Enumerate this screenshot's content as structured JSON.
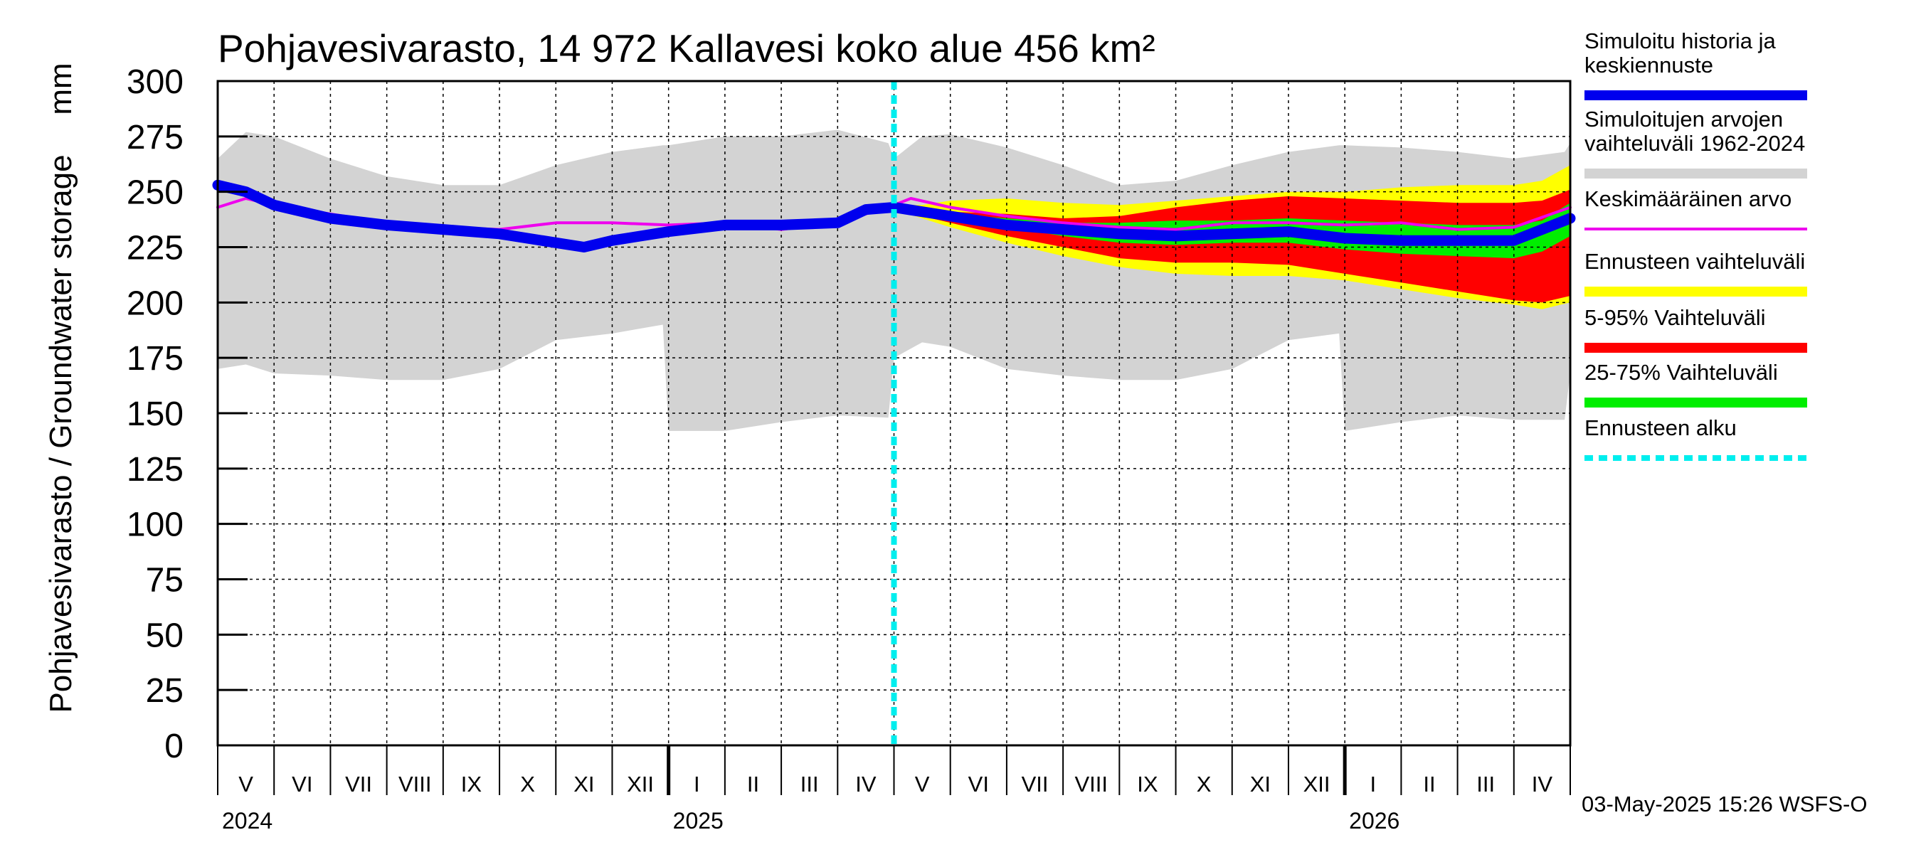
{
  "title": "Pohjavesivarasto, 14 972 Kallavesi koko alue 456 km²",
  "unit": "mm",
  "y_axis_label": "Pohjavesivarasto / Groundwater storage",
  "timestamp": "03-May-2025 15:26 WSFS-O",
  "legend": [
    {
      "label_lines": [
        "Simuloitu historia ja",
        "keskiennuste"
      ],
      "color": "#0000ee",
      "style": "thick"
    },
    {
      "label_lines": [
        "Simuloitujen arvojen",
        "vaihteluväli 1962-2024"
      ],
      "color": "#d3d3d3",
      "style": "thick"
    },
    {
      "label_lines": [
        "Keskimääräinen arvo"
      ],
      "color": "#ee00ee",
      "style": "thin"
    },
    {
      "label_lines": [
        "Ennusteen vaihteluväli"
      ],
      "color": "#ffff00",
      "style": "thick"
    },
    {
      "label_lines": [
        "5-95% Vaihteluväli"
      ],
      "color": "#ff0000",
      "style": "thick"
    },
    {
      "label_lines": [
        "25-75% Vaihteluväli"
      ],
      "color": "#00ee00",
      "style": "thick"
    },
    {
      "label_lines": [
        "Ennusteen alku"
      ],
      "color": "#00eeee",
      "style": "dashed"
    }
  ],
  "chart_data": {
    "type": "area",
    "x_unit": "month index (0 = 1 May 2024)",
    "ylim": [
      0,
      300
    ],
    "y_ticks": [
      0,
      25,
      50,
      75,
      100,
      125,
      150,
      175,
      200,
      225,
      250,
      275,
      300
    ],
    "xlim": [
      0,
      24
    ],
    "months": [
      "V",
      "VI",
      "VII",
      "VIII",
      "IX",
      "X",
      "XI",
      "XII",
      "I",
      "II",
      "III",
      "IV",
      "V",
      "VI",
      "VII",
      "VIII",
      "IX",
      "X",
      "XI",
      "XII",
      "I",
      "II",
      "III",
      "IV"
    ],
    "years": [
      {
        "label": "2024",
        "month_index": 0
      },
      {
        "label": "2025",
        "month_index": 8
      },
      {
        "label": "2026",
        "month_index": 20
      }
    ],
    "forecast_start": 12,
    "grid": true,
    "legend_position": "right",
    "series": [
      {
        "name": "Simuloitujen arvojen vaihteluväli 1962-2024",
        "color": "#d3d3d3",
        "kind": "band",
        "x": [
          0,
          0.5,
          1,
          2,
          3,
          4,
          5,
          6,
          7,
          7.9,
          8,
          9,
          10,
          11,
          11.9,
          12,
          12.5,
          13,
          14,
          15,
          16,
          17,
          18,
          19,
          19.9,
          20,
          21,
          22,
          23,
          23.9,
          24
        ],
        "upper": [
          265,
          277,
          275,
          265,
          257,
          253,
          253,
          262,
          268,
          271,
          271,
          275,
          275,
          278,
          272,
          265,
          275,
          276,
          270,
          262,
          253,
          255,
          262,
          268,
          271,
          271,
          270,
          268,
          265,
          268,
          272
        ],
        "lower": [
          170,
          172,
          168,
          167,
          165,
          165,
          170,
          183,
          186,
          190,
          142,
          142,
          146,
          149,
          148,
          175,
          182,
          180,
          170,
          167,
          165,
          165,
          170,
          183,
          186,
          142,
          146,
          149,
          147,
          147,
          168
        ]
      },
      {
        "name": "Ennusteen vaihteluväli",
        "color": "#ffff00",
        "kind": "band",
        "x": [
          12,
          12.5,
          13,
          14,
          15,
          16,
          17,
          18,
          19,
          20,
          21,
          22,
          23,
          23.5,
          24
        ],
        "upper": [
          244,
          244,
          246,
          247,
          245,
          244,
          246,
          248,
          250,
          250,
          252,
          253,
          253,
          255,
          262
        ],
        "lower": [
          242,
          238,
          234,
          227,
          221,
          216,
          213,
          212,
          212,
          210,
          206,
          202,
          199,
          197,
          200
        ]
      },
      {
        "name": "5-95% Vaihteluväli",
        "color": "#ff0000",
        "kind": "band",
        "x": [
          12,
          12.5,
          13,
          14,
          15,
          16,
          17,
          18,
          19,
          20,
          21,
          22,
          23,
          23.5,
          24
        ],
        "upper": [
          243,
          242,
          241,
          240,
          238,
          239,
          243,
          246,
          248,
          247,
          246,
          245,
          245,
          246,
          251
        ],
        "lower": [
          242,
          239,
          236,
          230,
          225,
          220,
          218,
          218,
          217,
          213,
          209,
          205,
          201,
          200,
          203
        ]
      },
      {
        "name": "25-75% Vaihteluväli",
        "color": "#00ee00",
        "kind": "band",
        "x": [
          12,
          12.5,
          13,
          14,
          15,
          16,
          17,
          18,
          19,
          20,
          21,
          22,
          23,
          23.5,
          24
        ],
        "upper": [
          242,
          241,
          240,
          238,
          236,
          236,
          237,
          237,
          238,
          237,
          236,
          235,
          235,
          237,
          245
        ],
        "lower": [
          242,
          240,
          238,
          234,
          230,
          227,
          226,
          227,
          227,
          224,
          222,
          221,
          220,
          223,
          230
        ]
      },
      {
        "name": "Keskimääräinen arvo",
        "color": "#ee00ee",
        "kind": "line",
        "x": [
          0,
          0.5,
          1,
          2,
          3,
          4,
          5,
          6,
          7,
          8,
          9,
          10,
          11,
          12,
          12.3,
          13,
          14,
          15,
          16,
          17,
          18,
          19,
          20,
          21,
          22,
          23,
          24
        ],
        "y": [
          243,
          247,
          244,
          240,
          236,
          234,
          233,
          236,
          236,
          235,
          236,
          233,
          236,
          244,
          247,
          243,
          239,
          236,
          234,
          233,
          236,
          236,
          235,
          236,
          233,
          234,
          243
        ]
      },
      {
        "name": "Simuloitu historia ja keskiennuste",
        "color": "#0000ee",
        "kind": "line",
        "x": [
          0,
          0.5,
          1,
          2,
          3,
          4,
          5,
          6,
          6.5,
          7,
          8,
          9,
          10,
          11,
          11.5,
          12,
          13,
          14,
          15,
          16,
          17,
          18,
          19,
          20,
          21,
          22,
          23,
          24
        ],
        "y": [
          253,
          250,
          244,
          238,
          235,
          233,
          231,
          227,
          225,
          228,
          232,
          235,
          235,
          236,
          242,
          243,
          239,
          235,
          233,
          231,
          230,
          231,
          232,
          229,
          228,
          228,
          228,
          238
        ]
      }
    ]
  }
}
